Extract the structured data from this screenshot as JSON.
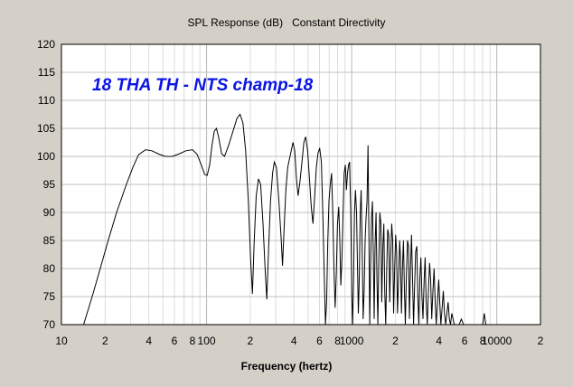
{
  "chart_data": {
    "type": "line",
    "title": "SPL Response (dB)   Constant Directivity",
    "xlabel": "Frequency (hertz)",
    "ylabel": "",
    "annotation": "18 THA TH - NTS champ-18",
    "x_scale": "log",
    "xlim": [
      10,
      20000
    ],
    "ylim": [
      70,
      120
    ],
    "grid": true,
    "line_color": "#000000",
    "annotation_color": "#0a14e6",
    "plot_background": "#ffffff",
    "background": "#d4d0c8",
    "x_ticks": [
      {
        "value": 10,
        "label": "10"
      },
      {
        "value": 20,
        "label": "2"
      },
      {
        "value": 40,
        "label": "4"
      },
      {
        "value": 60,
        "label": "6"
      },
      {
        "value": 80,
        "label": "8"
      },
      {
        "value": 100,
        "label": "100"
      },
      {
        "value": 200,
        "label": "2"
      },
      {
        "value": 400,
        "label": "4"
      },
      {
        "value": 600,
        "label": "6"
      },
      {
        "value": 800,
        "label": "8"
      },
      {
        "value": 1000,
        "label": "1000"
      },
      {
        "value": 2000,
        "label": "2"
      },
      {
        "value": 4000,
        "label": "4"
      },
      {
        "value": 6000,
        "label": "6"
      },
      {
        "value": 8000,
        "label": "8"
      },
      {
        "value": 10000,
        "label": "10000"
      },
      {
        "value": 20000,
        "label": "2"
      }
    ],
    "y_ticks": [
      70,
      75,
      80,
      85,
      90,
      95,
      100,
      105,
      110,
      115,
      120
    ],
    "series": [
      {
        "points": [
          [
            14.2,
            70
          ],
          [
            15,
            72
          ],
          [
            16.5,
            75.5
          ],
          [
            18.5,
            80
          ],
          [
            21,
            85
          ],
          [
            24,
            90
          ],
          [
            28,
            95
          ],
          [
            31,
            98
          ],
          [
            34,
            100.3
          ],
          [
            38,
            101.2
          ],
          [
            42,
            101
          ],
          [
            47,
            100.4
          ],
          [
            52,
            100
          ],
          [
            58,
            100
          ],
          [
            64,
            100.4
          ],
          [
            72,
            101
          ],
          [
            80,
            101.2
          ],
          [
            86,
            100.4
          ],
          [
            92,
            98.5
          ],
          [
            97,
            96.8
          ],
          [
            101,
            96.6
          ],
          [
            105,
            98.5
          ],
          [
            109,
            102
          ],
          [
            113,
            104.5
          ],
          [
            117,
            105
          ],
          [
            121,
            103.5
          ],
          [
            127,
            100.5
          ],
          [
            133,
            100
          ],
          [
            142,
            102
          ],
          [
            152,
            104.5
          ],
          [
            162,
            106.8
          ],
          [
            170,
            107.5
          ],
          [
            178,
            106
          ],
          [
            186,
            101
          ],
          [
            194,
            92
          ],
          [
            201,
            82
          ],
          [
            207,
            75.5
          ],
          [
            213,
            85
          ],
          [
            220,
            93
          ],
          [
            228,
            96
          ],
          [
            236,
            95
          ],
          [
            245,
            88
          ],
          [
            253,
            80
          ],
          [
            260,
            74.5
          ],
          [
            268,
            84
          ],
          [
            276,
            92
          ],
          [
            285,
            97
          ],
          [
            293,
            99
          ],
          [
            303,
            98
          ],
          [
            315,
            92
          ],
          [
            327,
            85
          ],
          [
            334,
            80.5
          ],
          [
            342,
            87
          ],
          [
            352,
            94
          ],
          [
            362,
            98
          ],
          [
            372,
            99.5
          ],
          [
            383,
            101
          ],
          [
            394,
            102.5
          ],
          [
            405,
            101
          ],
          [
            416,
            96
          ],
          [
            427,
            93
          ],
          [
            440,
            95.5
          ],
          [
            454,
            99
          ],
          [
            468,
            102.5
          ],
          [
            482,
            103.5
          ],
          [
            497,
            101
          ],
          [
            512,
            96
          ],
          [
            527,
            91
          ],
          [
            541,
            88
          ],
          [
            556,
            93
          ],
          [
            571,
            98
          ],
          [
            586,
            100.5
          ],
          [
            602,
            101.5
          ],
          [
            618,
            99
          ],
          [
            634,
            89
          ],
          [
            648,
            78
          ],
          [
            660,
            70
          ],
          [
            672,
            74
          ],
          [
            685,
            85
          ],
          [
            698,
            92
          ],
          [
            712,
            95
          ],
          [
            727,
            97
          ],
          [
            741,
            90
          ],
          [
            755,
            80
          ],
          [
            769,
            73
          ],
          [
            783,
            79
          ],
          [
            798,
            88
          ],
          [
            814,
            91
          ],
          [
            828,
            85
          ],
          [
            842,
            77
          ],
          [
            857,
            82
          ],
          [
            872,
            90
          ],
          [
            888,
            97
          ],
          [
            904,
            98.5
          ],
          [
            920,
            94
          ],
          [
            936,
            97
          ],
          [
            952,
            98.5
          ],
          [
            968,
            99
          ],
          [
            985,
            90
          ],
          [
            1002,
            75
          ],
          [
            1015,
            70
          ],
          [
            1030,
            78
          ],
          [
            1046,
            90
          ],
          [
            1062,
            94
          ],
          [
            1080,
            90
          ],
          [
            1097,
            80
          ],
          [
            1112,
            72
          ],
          [
            1128,
            78
          ],
          [
            1145,
            90
          ],
          [
            1162,
            94
          ],
          [
            1180,
            84
          ],
          [
            1200,
            71
          ],
          [
            1219,
            76
          ],
          [
            1238,
            85
          ],
          [
            1256,
            89
          ],
          [
            1276,
            92
          ],
          [
            1296,
            102
          ],
          [
            1316,
            84
          ],
          [
            1332,
            70
          ],
          [
            1350,
            80
          ],
          [
            1370,
            89
          ],
          [
            1390,
            92
          ],
          [
            1410,
            82
          ],
          [
            1428,
            71
          ],
          [
            1450,
            84
          ],
          [
            1472,
            90
          ],
          [
            1494,
            78
          ],
          [
            1515,
            70
          ],
          [
            1540,
            82
          ],
          [
            1565,
            90
          ],
          [
            1590,
            88
          ],
          [
            1613,
            74
          ],
          [
            1640,
            84
          ],
          [
            1665,
            88
          ],
          [
            1690,
            76
          ],
          [
            1716,
            70
          ],
          [
            1745,
            80
          ],
          [
            1773,
            87
          ],
          [
            1800,
            86
          ],
          [
            1828,
            74
          ],
          [
            1858,
            82
          ],
          [
            1888,
            88
          ],
          [
            1917,
            85
          ],
          [
            1945,
            72
          ],
          [
            1978,
            80
          ],
          [
            2010,
            86
          ],
          [
            2040,
            83
          ],
          [
            2070,
            72
          ],
          [
            2105,
            78
          ],
          [
            2140,
            85
          ],
          [
            2170,
            82
          ],
          [
            2205,
            72
          ],
          [
            2240,
            80
          ],
          [
            2275,
            85
          ],
          [
            2310,
            76
          ],
          [
            2345,
            70
          ],
          [
            2385,
            79
          ],
          [
            2425,
            85
          ],
          [
            2465,
            84
          ],
          [
            2500,
            71
          ],
          [
            2545,
            80
          ],
          [
            2585,
            86
          ],
          [
            2630,
            78
          ],
          [
            2670,
            70
          ],
          [
            2715,
            77
          ],
          [
            2760,
            83
          ],
          [
            2810,
            84
          ],
          [
            2855,
            75
          ],
          [
            2900,
            70
          ],
          [
            2950,
            78
          ],
          [
            3000,
            82
          ],
          [
            3050,
            75
          ],
          [
            3100,
            71
          ],
          [
            3160,
            78
          ],
          [
            3210,
            82
          ],
          [
            3260,
            74
          ],
          [
            3320,
            70
          ],
          [
            3380,
            76
          ],
          [
            3440,
            81
          ],
          [
            3500,
            78
          ],
          [
            3560,
            71
          ],
          [
            3630,
            76
          ],
          [
            3700,
            80
          ],
          [
            3760,
            74
          ],
          [
            3830,
            70
          ],
          [
            3900,
            74
          ],
          [
            3980,
            78
          ],
          [
            4050,
            74
          ],
          [
            4120,
            70
          ],
          [
            4200,
            73
          ],
          [
            4280,
            76
          ],
          [
            4360,
            72
          ],
          [
            4440,
            70
          ],
          [
            4530,
            72
          ],
          [
            4620,
            74
          ],
          [
            4710,
            71
          ],
          [
            4800,
            70
          ],
          [
            4900,
            72
          ],
          [
            5000,
            71
          ],
          [
            5100,
            70
          ],
          [
            5500,
            70
          ],
          [
            5700,
            71
          ],
          [
            5900,
            70
          ],
          [
            8000,
            70
          ],
          [
            8200,
            72
          ],
          [
            8400,
            70
          ]
        ]
      }
    ]
  }
}
